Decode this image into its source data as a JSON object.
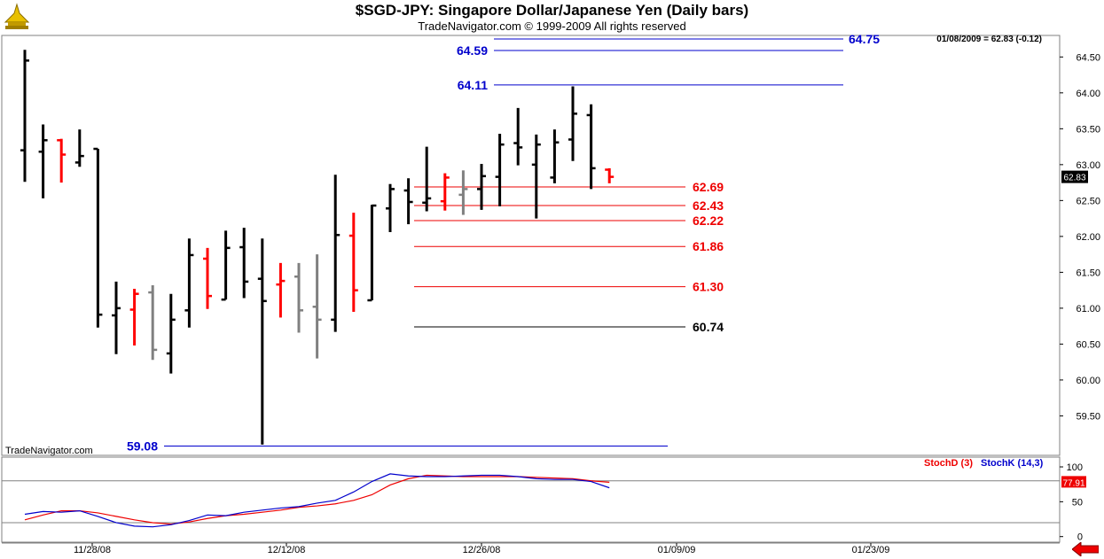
{
  "header": {
    "title": "$SGD-JPY:  Singapore Dollar/Japanese Yen  (Daily bars)",
    "subtitle": "TradeNavigator.com © 1999-2009 All rights reserved",
    "quote": "01/08/2009 = 62.83 (-0.12)"
  },
  "watermark": "TradeNavigator.com",
  "colors": {
    "up": "#000000",
    "down": "#ff0000",
    "neutral": "#808080",
    "blue": "#0000cc",
    "red": "#ee0000"
  },
  "chart_data": [
    {
      "type": "ohlc",
      "title": "$SGD-JPY:  Singapore Dollar/Japanese Yen  (Daily bars)",
      "ylim": [
        58.95,
        64.8
      ],
      "y_ticks": [
        "59.50",
        "60.00",
        "60.50",
        "61.00",
        "61.50",
        "62.00",
        "62.50",
        "63.00",
        "63.50",
        "64.00",
        "64.50"
      ],
      "x_tick_labels": [
        "11/28/08",
        "12/12/08",
        "12/26/08",
        "01/09/09",
        "01/23/09"
      ],
      "last_price_label": "62.83",
      "bars": [
        {
          "o": 63.2,
          "h": 64.6,
          "l": 62.76,
          "c": 64.45,
          "col": "up"
        },
        {
          "o": 63.18,
          "h": 63.56,
          "l": 62.53,
          "c": 63.34,
          "col": "up"
        },
        {
          "o": 63.34,
          "h": 63.36,
          "l": 62.75,
          "c": 63.14,
          "col": "down"
        },
        {
          "o": 63.03,
          "h": 63.49,
          "l": 62.97,
          "c": 63.12,
          "col": "up"
        },
        {
          "o": 63.22,
          "h": 63.22,
          "l": 60.73,
          "c": 60.91,
          "col": "up"
        },
        {
          "o": 60.9,
          "h": 61.37,
          "l": 60.36,
          "c": 61.0,
          "col": "up"
        },
        {
          "o": 60.98,
          "h": 61.27,
          "l": 60.48,
          "c": 61.2,
          "col": "down"
        },
        {
          "o": 61.22,
          "h": 61.32,
          "l": 60.28,
          "c": 60.42,
          "col": "neutral"
        },
        {
          "o": 60.37,
          "h": 61.2,
          "l": 60.09,
          "c": 60.84,
          "col": "up"
        },
        {
          "o": 60.97,
          "h": 61.97,
          "l": 60.73,
          "c": 61.74,
          "col": "up"
        },
        {
          "o": 61.69,
          "h": 61.84,
          "l": 60.99,
          "c": 61.17,
          "col": "down"
        },
        {
          "o": 61.12,
          "h": 62.08,
          "l": 61.12,
          "c": 61.84,
          "col": "up"
        },
        {
          "o": 61.85,
          "h": 62.12,
          "l": 61.14,
          "c": 61.37,
          "col": "up"
        },
        {
          "o": 61.41,
          "h": 61.97,
          "l": 59.1,
          "c": 61.1,
          "col": "up"
        },
        {
          "o": 61.33,
          "h": 61.63,
          "l": 60.87,
          "c": 61.38,
          "col": "down"
        },
        {
          "o": 61.44,
          "h": 61.63,
          "l": 60.66,
          "c": 60.97,
          "col": "neutral"
        },
        {
          "o": 61.02,
          "h": 61.75,
          "l": 60.3,
          "c": 60.84,
          "col": "neutral"
        },
        {
          "o": 60.84,
          "h": 62.86,
          "l": 60.67,
          "c": 62.02,
          "col": "up"
        },
        {
          "o": 62.01,
          "h": 62.33,
          "l": 60.95,
          "c": 61.25,
          "col": "down"
        },
        {
          "o": 61.11,
          "h": 62.44,
          "l": 61.11,
          "c": 62.43,
          "col": "up"
        },
        {
          "o": 62.39,
          "h": 62.73,
          "l": 62.06,
          "c": 62.66,
          "col": "up"
        },
        {
          "o": 62.64,
          "h": 62.81,
          "l": 62.17,
          "c": 62.48,
          "col": "up"
        },
        {
          "o": 62.47,
          "h": 63.25,
          "l": 62.35,
          "c": 62.53,
          "col": "up"
        },
        {
          "o": 62.49,
          "h": 62.88,
          "l": 62.36,
          "c": 62.82,
          "col": "down"
        },
        {
          "o": 62.58,
          "h": 62.92,
          "l": 62.3,
          "c": 62.66,
          "col": "neutral"
        },
        {
          "o": 62.66,
          "h": 63.01,
          "l": 62.37,
          "c": 62.84,
          "col": "up"
        },
        {
          "o": 62.83,
          "h": 63.43,
          "l": 62.42,
          "c": 63.28,
          "col": "up"
        },
        {
          "o": 63.3,
          "h": 63.79,
          "l": 62.99,
          "c": 63.24,
          "col": "up"
        },
        {
          "o": 63.0,
          "h": 63.42,
          "l": 62.25,
          "c": 63.28,
          "col": "up"
        },
        {
          "o": 62.82,
          "h": 63.49,
          "l": 62.74,
          "c": 63.31,
          "col": "up"
        },
        {
          "o": 63.35,
          "h": 64.09,
          "l": 63.05,
          "c": 63.71,
          "col": "up"
        },
        {
          "o": 63.69,
          "h": 63.84,
          "l": 62.66,
          "c": 62.95,
          "col": "up"
        },
        {
          "o": 62.93,
          "h": 62.95,
          "l": 62.74,
          "c": 62.83,
          "col": "down"
        }
      ],
      "levels": [
        {
          "value": 64.75,
          "label": "64.75",
          "color": "blue",
          "label_side": "right"
        },
        {
          "value": 64.59,
          "label": "64.59",
          "color": "blue",
          "label_side": "left"
        },
        {
          "value": 64.11,
          "label": "64.11",
          "color": "blue",
          "label_side": "left"
        },
        {
          "value": 62.69,
          "label": "62.69",
          "color": "red",
          "label_side": "right"
        },
        {
          "value": 62.43,
          "label": "62.43",
          "color": "red",
          "label_side": "right"
        },
        {
          "value": 62.22,
          "label": "62.22",
          "color": "red",
          "label_side": "right"
        },
        {
          "value": 61.86,
          "label": "61.86",
          "color": "red",
          "label_side": "right"
        },
        {
          "value": 61.3,
          "label": "61.30",
          "color": "red",
          "label_side": "right"
        },
        {
          "value": 60.74,
          "label": "60.74",
          "color": "black",
          "label_side": "right"
        },
        {
          "value": 59.08,
          "label": "59.08",
          "color": "blue",
          "label_side": "left"
        }
      ]
    },
    {
      "type": "line",
      "title": "Stochastic",
      "ylim": [
        -8,
        114
      ],
      "y_ticks": [
        "0",
        "50",
        "100"
      ],
      "reference_lines": [
        20,
        80
      ],
      "last_value_label": "77.91",
      "series": [
        {
          "name": "StochD (3)",
          "color": "#ee0000",
          "values": [
            24,
            31,
            37,
            37,
            34,
            29,
            24,
            20,
            18,
            21,
            26,
            30,
            32,
            35,
            38,
            42,
            44,
            47,
            52,
            60,
            74,
            83,
            88,
            87,
            86,
            86,
            86,
            86,
            85,
            84,
            83,
            80,
            77.91
          ]
        },
        {
          "name": "StochK (14,3)",
          "color": "#0000cc",
          "values": [
            32,
            36,
            35,
            37,
            29,
            20,
            15,
            14,
            17,
            23,
            31,
            30,
            35,
            38,
            41,
            43,
            48,
            52,
            64,
            79,
            90,
            87,
            86,
            86,
            87,
            88,
            88,
            86,
            83,
            82,
            82,
            79,
            70
          ]
        }
      ]
    }
  ]
}
